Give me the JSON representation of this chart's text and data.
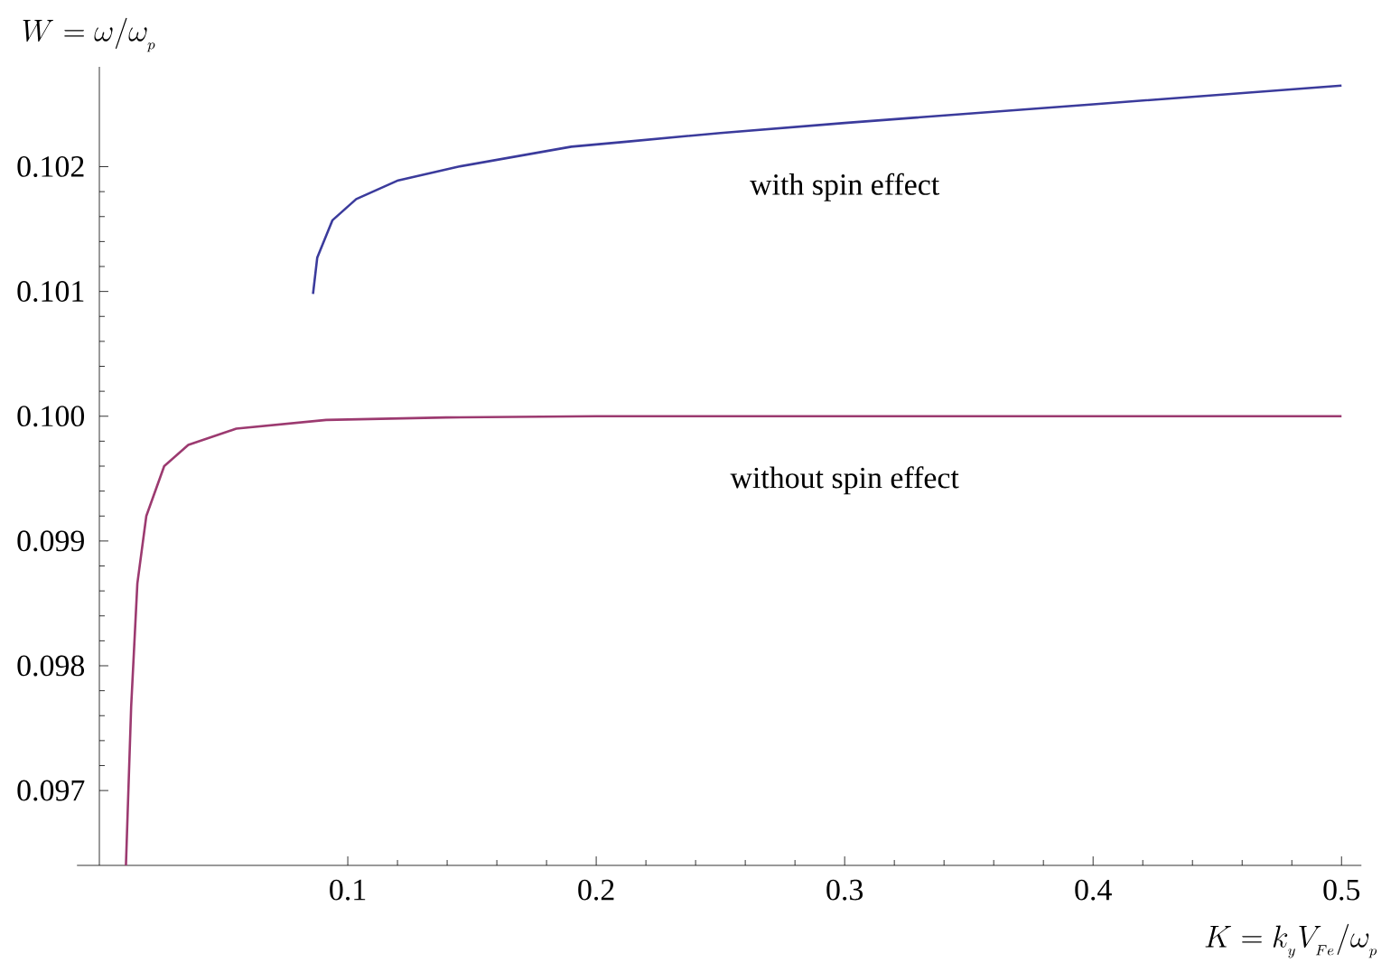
{
  "chart_data": {
    "type": "line",
    "xlabel": "K = k_{_y} V_{_{Fe}} \\big/ \\omega_{_p}",
    "ylabel": "W = \\omega \\big/ \\omega_{_p}",
    "xlim": [
      -0.009,
      0.508
    ],
    "ylim": [
      0.0964,
      0.1028
    ],
    "xticks": [
      0.1,
      0.2,
      0.3,
      0.4,
      0.5
    ],
    "yticks": [
      0.097,
      0.098,
      0.099,
      {
        "value": 0.1,
        "label": "0.100"
      },
      0.101,
      0.102
    ],
    "grid": false,
    "legend": false,
    "marker": "none",
    "line_style": "solid",
    "series": [
      {
        "name": "with spin effect",
        "color": "#3b3b9c",
        "x": [
          0.086,
          0.0877,
          0.0938,
          0.1034,
          0.1203,
          0.1445,
          0.19,
          0.2121,
          0.25,
          0.3,
          0.4,
          0.5
        ],
        "values": [
          0.10098,
          0.10127,
          0.10157,
          0.10174,
          0.10189,
          0.102,
          0.10216,
          0.1022,
          0.10227,
          0.10235,
          0.1025,
          0.10265
        ]
      },
      {
        "name": "without spin effect",
        "color": "#9c3a70",
        "x": [
          0.0107,
          0.0128,
          0.0153,
          0.0189,
          0.0261,
          0.0358,
          0.0551,
          0.0913,
          0.1396,
          0.2,
          0.3,
          0.4,
          0.5
        ],
        "values": [
          0.0964,
          0.09767,
          0.09866,
          0.0992,
          0.0996,
          0.09977,
          0.0999,
          0.09997,
          0.09999,
          0.1,
          0.1,
          0.1,
          0.1
        ]
      }
    ]
  }
}
